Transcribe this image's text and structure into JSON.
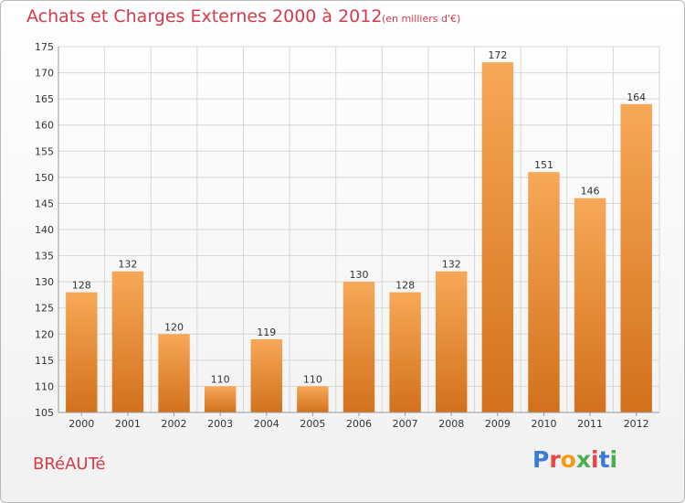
{
  "title": "Achats et Charges Externes 2000 à 2012",
  "subtitle": "(en milliers d'€)",
  "commune": "BRéAUTé",
  "logo": {
    "text": "Proxiti",
    "letter_colors": [
      "#3a7bd5",
      "#e8463e",
      "#f39c12",
      "#4caf50",
      "#e8463e",
      "#3a7bd5",
      "#4caf50"
    ]
  },
  "colors": {
    "bar_light": "#f7a857",
    "bar_dark": "#d2711c",
    "grid": "#d7d7d7",
    "axis": "#999999",
    "text": "#333333",
    "accent": "#d63a4a"
  },
  "chart_data": {
    "type": "bar",
    "categories": [
      "2000",
      "2001",
      "2002",
      "2003",
      "2004",
      "2005",
      "2006",
      "2007",
      "2008",
      "2009",
      "2010",
      "2011",
      "2012"
    ],
    "values": [
      128,
      132,
      120,
      110,
      119,
      110,
      130,
      128,
      132,
      172,
      151,
      146,
      164
    ],
    "ylim": [
      105,
      175
    ],
    "yticks": [
      105,
      110,
      115,
      120,
      125,
      130,
      135,
      140,
      145,
      150,
      155,
      160,
      165,
      170,
      175
    ],
    "grid": true,
    "title": "Achats et Charges Externes 2000 à 2012",
    "xlabel": "",
    "ylabel": ""
  }
}
